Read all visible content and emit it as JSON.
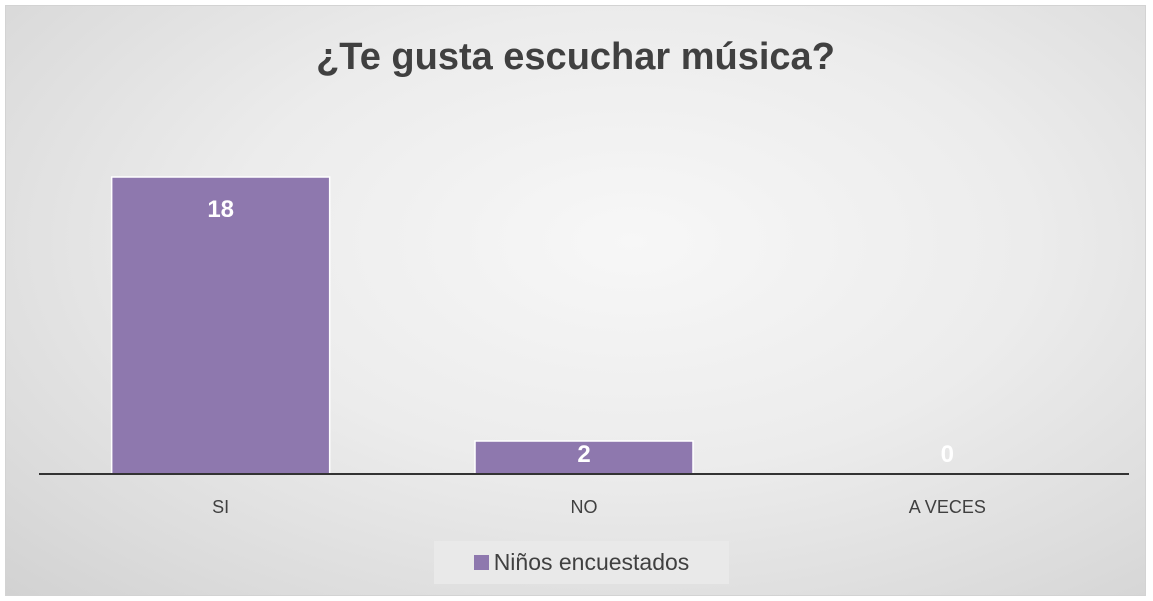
{
  "chart_data": {
    "type": "bar",
    "title": "¿Te gusta escuchar música?",
    "categories": [
      "SI",
      "NO",
      "A VECES"
    ],
    "series": [
      {
        "name": "Niños encuestados",
        "values": [
          18,
          2,
          0
        ],
        "color": "#8e78ae"
      }
    ],
    "data_labels": [
      "18",
      "2",
      "0"
    ],
    "ylim": [
      0,
      20
    ],
    "grid": false,
    "legend_position": "bottom"
  }
}
